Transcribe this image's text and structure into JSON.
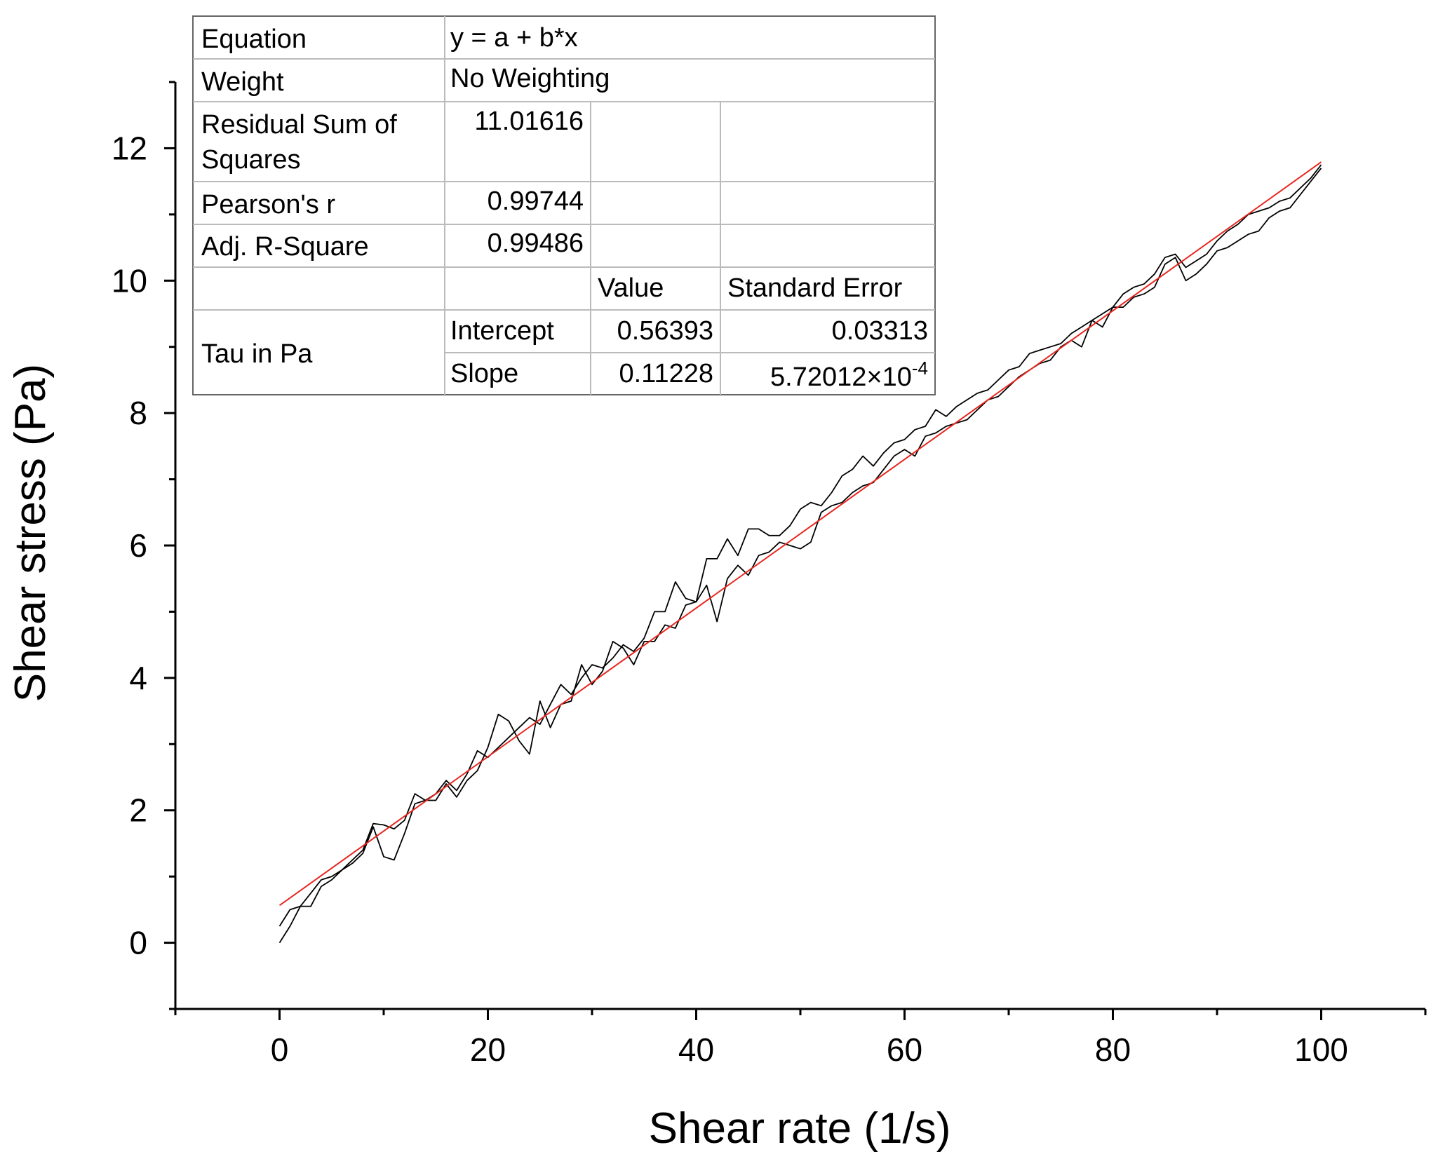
{
  "chart_data": {
    "type": "line",
    "xlabel": "Shear rate (1/s)",
    "ylabel": "Shear stress (Pa)",
    "xlim": [
      -10,
      110
    ],
    "ylim": [
      -1,
      13
    ],
    "xticks": [
      0,
      20,
      40,
      60,
      80,
      100
    ],
    "yticks": [
      0,
      2,
      4,
      6,
      8,
      10,
      12
    ],
    "grid": false,
    "series": [
      {
        "color": "#000000",
        "x": [
          0,
          1,
          2,
          3,
          4,
          5,
          6,
          7,
          8,
          9,
          10,
          11,
          12,
          13,
          14,
          15,
          16,
          17,
          18,
          19,
          20,
          21,
          22,
          23,
          24,
          25,
          26,
          27,
          28,
          29,
          30,
          31,
          32,
          33,
          34,
          35,
          36,
          37,
          38,
          39,
          40,
          41,
          42,
          43,
          44,
          45,
          46,
          47,
          48,
          49,
          50,
          51,
          52,
          53,
          54,
          55,
          56,
          57,
          58,
          59,
          60,
          61,
          62,
          63,
          64,
          65,
          66,
          67,
          68,
          69,
          70,
          71,
          72,
          73,
          74,
          75,
          76,
          77,
          78,
          79,
          80,
          81,
          82,
          83,
          84,
          85,
          86,
          87,
          88,
          89,
          90,
          91,
          92,
          93,
          94,
          95,
          96,
          97,
          98,
          99,
          100
        ],
        "y": [
          0.25,
          0.5,
          0.55,
          0.75,
          0.95,
          1.0,
          1.1,
          1.25,
          1.4,
          1.8,
          1.78,
          1.72,
          1.85,
          2.25,
          2.15,
          2.25,
          2.45,
          2.3,
          2.55,
          2.9,
          2.8,
          2.95,
          3.1,
          3.25,
          3.4,
          3.3,
          3.6,
          3.9,
          3.75,
          4.0,
          4.2,
          4.15,
          4.3,
          4.5,
          4.4,
          4.6,
          5.0,
          5.0,
          5.45,
          5.2,
          5.15,
          5.8,
          5.8,
          6.1,
          5.85,
          6.25,
          6.25,
          6.15,
          6.15,
          6.3,
          6.55,
          6.65,
          6.6,
          6.8,
          7.05,
          7.15,
          7.35,
          7.2,
          7.4,
          7.55,
          7.6,
          7.75,
          7.8,
          8.05,
          7.95,
          8.1,
          8.2,
          8.3,
          8.35,
          8.5,
          8.65,
          8.7,
          8.9,
          8.95,
          9.0,
          9.05,
          9.2,
          9.3,
          9.4,
          9.5,
          9.6,
          9.8,
          9.9,
          9.95,
          10.1,
          10.35,
          10.4,
          10.2,
          10.3,
          10.4,
          10.6,
          10.75,
          10.85,
          11.0,
          11.05,
          11.1,
          11.2,
          11.25,
          11.4,
          11.55,
          11.75
        ]
      },
      {
        "color": "#000000",
        "x": [
          0,
          1,
          2,
          3,
          4,
          5,
          6,
          7,
          8,
          9,
          10,
          11,
          12,
          13,
          14,
          15,
          16,
          17,
          18,
          19,
          20,
          21,
          22,
          23,
          24,
          25,
          26,
          27,
          28,
          29,
          30,
          31,
          32,
          33,
          34,
          35,
          36,
          37,
          38,
          39,
          40,
          41,
          42,
          43,
          44,
          45,
          46,
          47,
          48,
          49,
          50,
          51,
          52,
          53,
          54,
          55,
          56,
          57,
          58,
          59,
          60,
          61,
          62,
          63,
          64,
          65,
          66,
          67,
          68,
          69,
          70,
          71,
          72,
          73,
          74,
          75,
          76,
          77,
          78,
          79,
          80,
          81,
          82,
          83,
          84,
          85,
          86,
          87,
          88,
          89,
          90,
          91,
          92,
          93,
          94,
          95,
          96,
          97,
          98,
          99,
          100
        ],
        "y": [
          0.0,
          0.25,
          0.55,
          0.55,
          0.85,
          0.95,
          1.1,
          1.2,
          1.35,
          1.75,
          1.3,
          1.25,
          1.65,
          2.1,
          2.15,
          2.15,
          2.4,
          2.2,
          2.45,
          2.6,
          2.95,
          3.45,
          3.35,
          3.05,
          2.85,
          3.65,
          3.25,
          3.6,
          3.65,
          4.2,
          3.9,
          4.1,
          4.55,
          4.45,
          4.2,
          4.55,
          4.55,
          4.8,
          4.75,
          5.1,
          5.15,
          5.4,
          4.85,
          5.5,
          5.7,
          5.55,
          5.85,
          5.9,
          6.05,
          6.0,
          5.95,
          6.05,
          6.5,
          6.6,
          6.65,
          6.8,
          6.9,
          6.95,
          7.15,
          7.35,
          7.45,
          7.35,
          7.65,
          7.7,
          7.8,
          7.85,
          7.9,
          8.05,
          8.2,
          8.25,
          8.4,
          8.55,
          8.65,
          8.75,
          8.8,
          9.0,
          9.1,
          9.0,
          9.4,
          9.3,
          9.6,
          9.6,
          9.75,
          9.8,
          9.9,
          10.25,
          10.35,
          10.0,
          10.1,
          10.25,
          10.45,
          10.5,
          10.6,
          10.7,
          10.75,
          10.95,
          11.05,
          11.1,
          11.3,
          11.5,
          11.7
        ]
      },
      {
        "color": "#e8271f",
        "x": [
          0,
          100
        ],
        "y": [
          0.56393,
          11.79193
        ]
      }
    ],
    "table": {
      "rows": [
        {
          "label": "Equation",
          "value": "y = a + b*x"
        },
        {
          "label": "Weight",
          "value": "No Weighting"
        },
        {
          "label_line1": "Residual Sum of",
          "label_line2": "Squares",
          "value": "11.01616"
        },
        {
          "label": "Pearson's r",
          "value": "0.99744"
        },
        {
          "label": "Adj. R-Square",
          "value": "0.99486"
        }
      ],
      "header_value": "Value",
      "header_error": "Standard Error",
      "group_label": "Tau  in Pa",
      "params": [
        {
          "name": "Intercept",
          "value": "0.56393",
          "error": "0.03313"
        },
        {
          "name": "Slope",
          "value": "0.11228",
          "error_base": "5.72012×10",
          "error_exp": "-4"
        }
      ]
    }
  }
}
